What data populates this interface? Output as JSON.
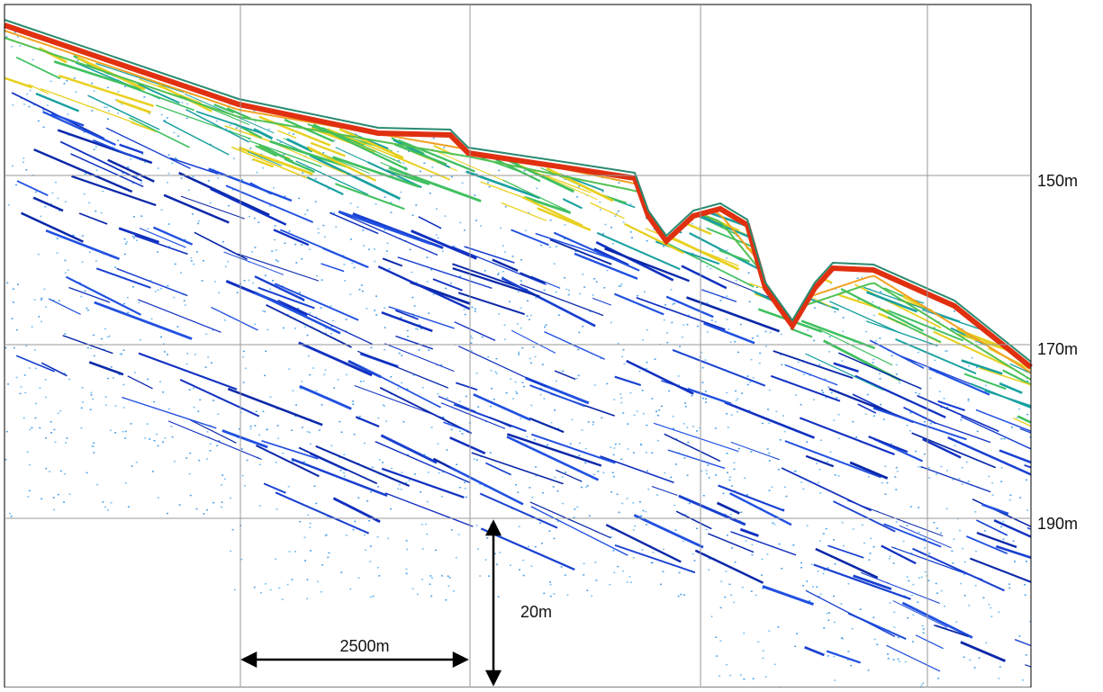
{
  "depth_labels": [
    "150m",
    "170m",
    "190m"
  ],
  "scale_bars": {
    "horizontal": "2500m",
    "vertical": "20m"
  }
}
